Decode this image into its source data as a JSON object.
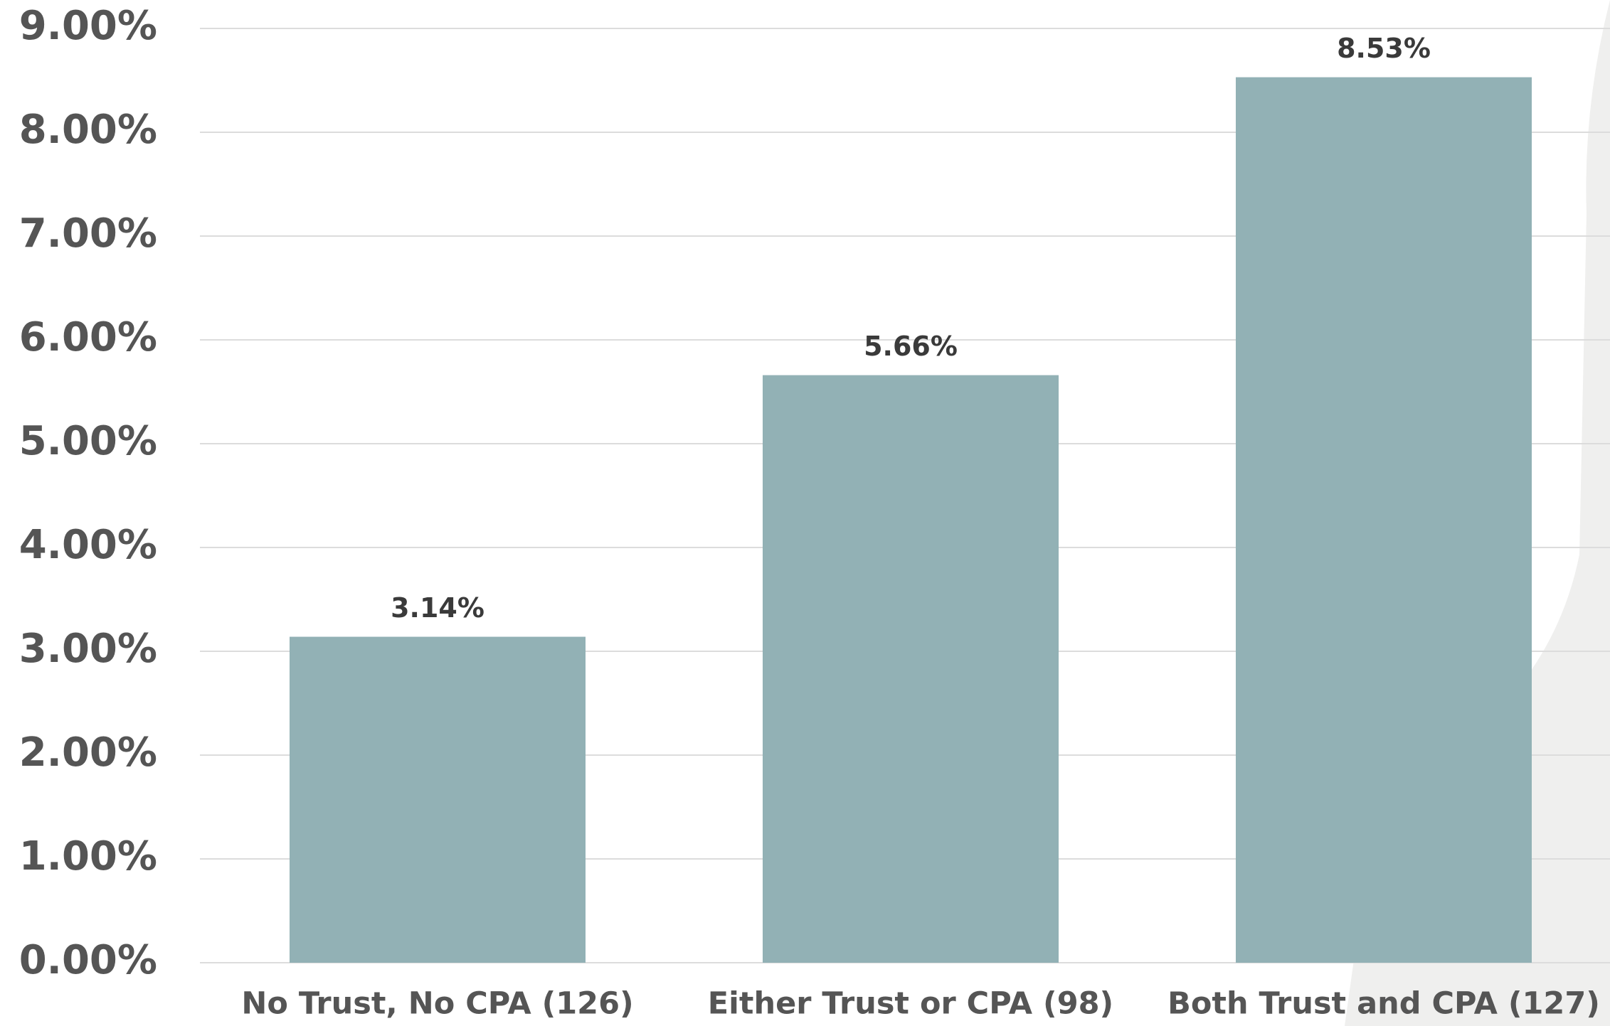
{
  "chart_data": {
    "type": "bar",
    "categories": [
      "No Trust, No CPA (126)",
      "Either Trust or CPA (98)",
      "Both Trust and CPA (127)"
    ],
    "values": [
      3.14,
      5.66,
      8.53
    ],
    "value_labels": [
      "3.14%",
      "5.66%",
      "8.53%"
    ],
    "color": "#92b1b5",
    "ylim": [
      0,
      9
    ],
    "yticks": [
      {
        "value": 0,
        "label": "0.00%"
      },
      {
        "value": 1,
        "label": "1.00%"
      },
      {
        "value": 2,
        "label": "2.00%"
      },
      {
        "value": 3,
        "label": "3.00%"
      },
      {
        "value": 4,
        "label": "4.00%"
      },
      {
        "value": 5,
        "label": "5.00%"
      },
      {
        "value": 6,
        "label": "6.00%"
      },
      {
        "value": 7,
        "label": "7.00%"
      },
      {
        "value": 8,
        "label": "8.00%"
      },
      {
        "value": 9,
        "label": "9.00%"
      }
    ],
    "grid": true
  }
}
